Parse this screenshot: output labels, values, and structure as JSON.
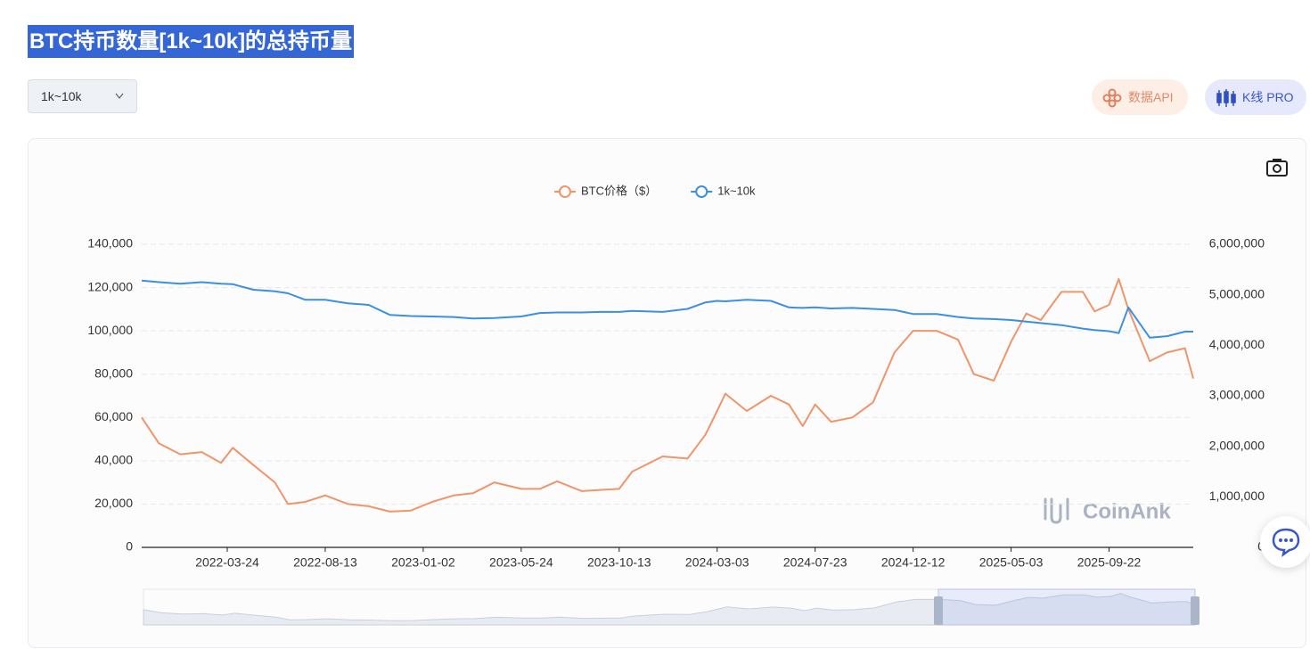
{
  "page": {
    "title": "BTC持币数量[1k~10k]的总持币量",
    "dropdown": "1k~10k",
    "buttons": [
      "数据API",
      "K线 PRO"
    ],
    "watermark": "CoinAnk"
  },
  "chart_data": {
    "type": "line",
    "x": [
      "2021-11-20",
      "2021-12-15",
      "2022-01-15",
      "2022-02-15",
      "2022-03-15",
      "2022-04-01",
      "2022-05-01",
      "2022-06-01",
      "2022-06-20",
      "2022-07-15",
      "2022-08-13",
      "2022-09-15",
      "2022-10-15",
      "2022-11-15",
      "2022-12-15",
      "2023-01-15",
      "2023-02-15",
      "2023-03-15",
      "2023-04-15",
      "2023-05-24",
      "2023-06-20",
      "2023-07-15",
      "2023-08-20",
      "2023-09-15",
      "2023-10-13",
      "2023-11-01",
      "2023-12-15",
      "2024-01-20",
      "2024-02-15",
      "2024-03-03",
      "2024-03-15",
      "2024-04-15",
      "2024-05-20",
      "2024-06-15",
      "2024-07-05",
      "2024-07-23",
      "2024-08-15",
      "2024-09-15",
      "2024-10-15",
      "2024-11-15",
      "2024-12-12",
      "2025-01-15",
      "2025-02-15",
      "2025-03-10",
      "2025-04-08",
      "2025-05-03",
      "2025-05-25",
      "2025-06-15",
      "2025-07-15",
      "2025-08-15",
      "2025-09-01",
      "2025-09-22",
      "2025-10-06",
      "2025-10-20",
      "2025-11-20",
      "2025-12-15",
      "2026-01-10",
      "2026-01-22"
    ],
    "series": [
      {
        "name": "BTC价格（$）",
        "color": "#f0956a",
        "values": [
          60000,
          48000,
          43000,
          44000,
          39000,
          46000,
          38000,
          30000,
          20000,
          21000,
          24000,
          20000,
          19000,
          16500,
          17000,
          21000,
          24000,
          25000,
          30000,
          27000,
          27000,
          30500,
          26000,
          26500,
          27000,
          35000,
          42000,
          41000,
          52000,
          63000,
          71000,
          63000,
          70000,
          66000,
          56000,
          66000,
          58000,
          60000,
          67000,
          90000,
          100000,
          100000,
          96000,
          80000,
          77000,
          95000,
          108000,
          105000,
          118000,
          118000,
          109000,
          112000,
          124000,
          110000,
          86000,
          90000,
          92000,
          78000
        ]
      },
      {
        "name": "1k~10k",
        "color": "#3d8fe0",
        "axis": "y2",
        "values": [
          5280000,
          5250000,
          5220000,
          5250000,
          5220000,
          5210000,
          5100000,
          5070000,
          5030000,
          4900000,
          4900000,
          4830000,
          4800000,
          4600000,
          4580000,
          4570000,
          4560000,
          4530000,
          4540000,
          4570000,
          4640000,
          4650000,
          4650000,
          4660000,
          4660000,
          4680000,
          4660000,
          4720000,
          4850000,
          4880000,
          4870000,
          4900000,
          4880000,
          4750000,
          4740000,
          4750000,
          4730000,
          4740000,
          4720000,
          4700000,
          4620000,
          4620000,
          4560000,
          4530000,
          4520000,
          4500000,
          4470000,
          4440000,
          4400000,
          4330000,
          4300000,
          4280000,
          4240000,
          4750000,
          4150000,
          4180000,
          4270000,
          4270000
        ]
      }
    ],
    "xlim": [
      "2021-11-20",
      "2026-01-22"
    ],
    "xticks": [
      "2022-03-24",
      "2022-08-13",
      "2023-01-02",
      "2023-05-24",
      "2023-10-13",
      "2024-03-03",
      "2024-07-23",
      "2024-12-12",
      "2025-05-03",
      "2025-09-22"
    ],
    "ylim": [
      0,
      140000
    ],
    "yticks": [
      0,
      {
        "value": 20000,
        "label": "20,000"
      },
      {
        "value": 40000,
        "label": "40,000"
      },
      {
        "value": 60000,
        "label": "60,000"
      },
      {
        "value": 80000,
        "label": "80,000"
      },
      {
        "value": 100000,
        "label": "100,000"
      },
      {
        "value": 120000,
        "label": "120,000"
      },
      {
        "value": 140000,
        "label": "140,000"
      }
    ],
    "y2lim": [
      0,
      6000000
    ],
    "y2ticks": [
      0,
      {
        "value": 1000000,
        "label": "1,000,000"
      },
      {
        "value": 2000000,
        "label": "2,000,000"
      },
      {
        "value": 3000000,
        "label": "3,000,000"
      },
      {
        "value": 4000000,
        "label": "4,000,000"
      },
      {
        "value": 5000000,
        "label": "5,000,000"
      },
      {
        "value": 6000000,
        "label": "6,000,000"
      }
    ],
    "grid": true,
    "legend": "top"
  }
}
